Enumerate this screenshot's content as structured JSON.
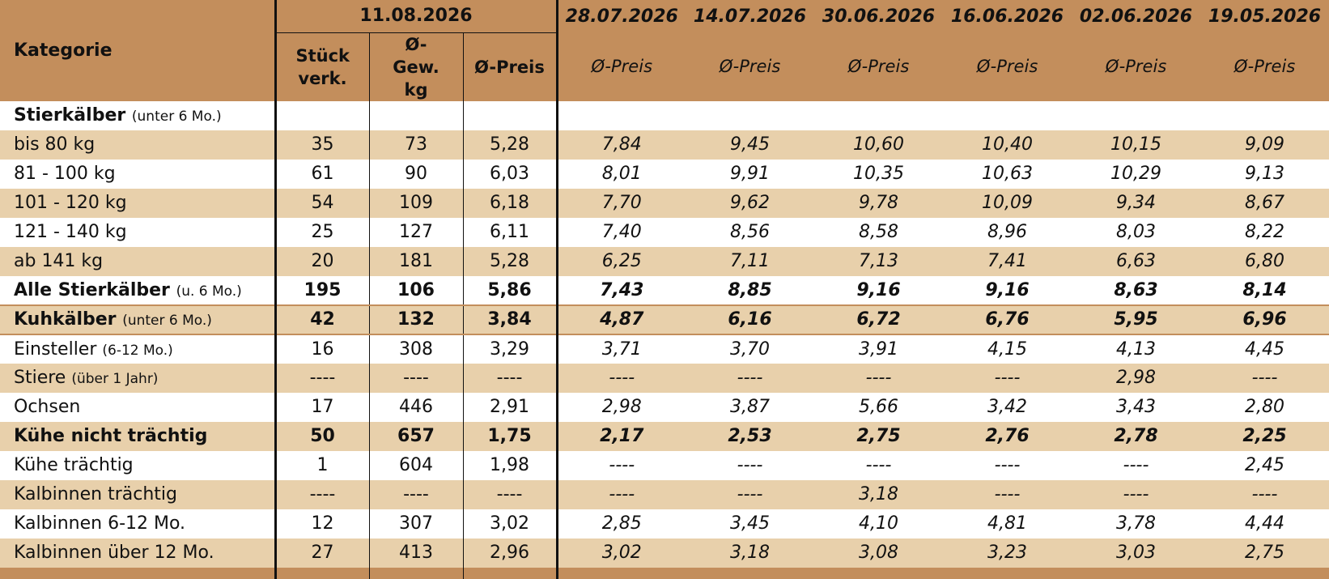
{
  "header": {
    "kategorie": "Kategorie",
    "current_date": "11.08.2026",
    "col_stueck": "Stück verk.",
    "col_gewicht": "Ø-Gew. kg",
    "col_preis": "Ø-Preis",
    "past_dates": [
      "28.07.2026",
      "14.07.2026",
      "30.06.2026",
      "16.06.2026",
      "02.06.2026",
      "19.05.2026"
    ],
    "past_col_label": "Ø-Preis"
  },
  "rows": [
    {
      "label": "Stierkälber",
      "note": "(unter 6 Mo.)",
      "values": [
        "",
        "",
        "",
        "",
        "",
        "",
        "",
        "",
        ""
      ]
    },
    {
      "label": "bis 80 kg",
      "note": "",
      "values": [
        "35",
        "73",
        "5,28",
        "7,84",
        "9,45",
        "10,60",
        "10,40",
        "10,15",
        "9,09"
      ]
    },
    {
      "label": "81 - 100 kg",
      "note": "",
      "values": [
        "61",
        "90",
        "6,03",
        "8,01",
        "9,91",
        "10,35",
        "10,63",
        "10,29",
        "9,13"
      ]
    },
    {
      "label": "101 - 120 kg",
      "note": "",
      "values": [
        "54",
        "109",
        "6,18",
        "7,70",
        "9,62",
        "9,78",
        "10,09",
        "9,34",
        "8,67"
      ]
    },
    {
      "label": "121 - 140 kg",
      "note": "",
      "values": [
        "25",
        "127",
        "6,11",
        "7,40",
        "8,56",
        "8,58",
        "8,96",
        "8,03",
        "8,22"
      ]
    },
    {
      "label": "ab 141 kg",
      "note": "",
      "values": [
        "20",
        "181",
        "5,28",
        "6,25",
        "7,11",
        "7,13",
        "7,41",
        "6,63",
        "6,80"
      ]
    },
    {
      "label": "Alle Stierkälber",
      "note": "(u. 6 Mo.)",
      "values": [
        "195",
        "106",
        "5,86",
        "7,43",
        "8,85",
        "9,16",
        "9,16",
        "8,63",
        "8,14"
      ]
    },
    {
      "label": "Kuhkälber",
      "note": "(unter 6 Mo.)",
      "values": [
        "42",
        "132",
        "3,84",
        "4,87",
        "6,16",
        "6,72",
        "6,76",
        "5,95",
        "6,96"
      ]
    },
    {
      "label": "Einsteller",
      "note": "(6-12 Mo.)",
      "values": [
        "16",
        "308",
        "3,29",
        "3,71",
        "3,70",
        "3,91",
        "4,15",
        "4,13",
        "4,45"
      ]
    },
    {
      "label": "Stiere",
      "note": "(über 1 Jahr)",
      "values": [
        "----",
        "----",
        "----",
        "----",
        "----",
        "----",
        "----",
        "2,98",
        "----"
      ]
    },
    {
      "label": "Ochsen",
      "note": "",
      "values": [
        "17",
        "446",
        "2,91",
        "2,98",
        "3,87",
        "5,66",
        "3,42",
        "3,43",
        "2,80"
      ]
    },
    {
      "label": "Kühe nicht trächtig",
      "note": "",
      "values": [
        "50",
        "657",
        "1,75",
        "2,17",
        "2,53",
        "2,75",
        "2,76",
        "2,78",
        "2,25"
      ]
    },
    {
      "label": "Kühe trächtig",
      "note": "",
      "values": [
        "1",
        "604",
        "1,98",
        "----",
        "----",
        "----",
        "----",
        "----",
        "2,45"
      ]
    },
    {
      "label": "Kalbinnen trächtig",
      "note": "",
      "values": [
        "----",
        "----",
        "----",
        "----",
        "----",
        "3,18",
        "----",
        "----",
        "----"
      ]
    },
    {
      "label": "Kalbinnen 6-12 Mo.",
      "note": "",
      "values": [
        "12",
        "307",
        "3,02",
        "2,85",
        "3,45",
        "4,10",
        "4,81",
        "3,78",
        "4,44"
      ]
    },
    {
      "label": "Kalbinnen über 12 Mo.",
      "note": "",
      "values": [
        "27",
        "413",
        "2,96",
        "3,02",
        "3,18",
        "3,08",
        "3,23",
        "3,03",
        "2,75"
      ]
    }
  ],
  "colors": {
    "header": "#c38e5c",
    "shade": "#e8d0ab",
    "border": "#111111"
  }
}
